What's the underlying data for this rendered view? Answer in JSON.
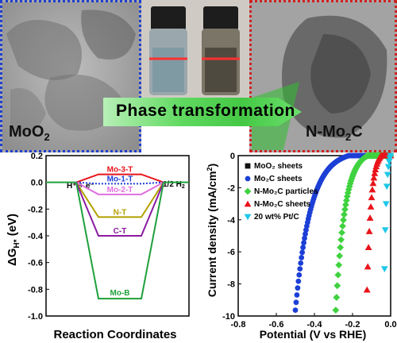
{
  "top": {
    "left_label": "MoO",
    "left_label_sub": "2",
    "right_label": "N-Mo",
    "right_label_sub": "2",
    "right_label_end": "C",
    "banner": "Phase transformation"
  },
  "chart_data": [
    {
      "type": "line",
      "ylabel": "ΔG",
      "ylabel_sub": "H*",
      "ylabel_unit": " (eV)",
      "xlabel": "Reaction Coordinates",
      "ylim": [
        -1.0,
        0.2
      ],
      "yticks": [
        "0.2",
        "0.0",
        "-0.2",
        "-0.4",
        "-0.6",
        "-0.8",
        "-1.0"
      ],
      "ytick_values": [
        0.2,
        0.0,
        -0.2,
        -0.4,
        -0.6,
        -0.8,
        -1.0
      ],
      "start_label": "H⁺ + e⁻",
      "end_label": "1/2 H",
      "end_label_sub": "2",
      "series": [
        {
          "name": "Mo-3-T",
          "value": 0.06,
          "color": "#e8141a"
        },
        {
          "name": "Mo-1-T",
          "value": -0.01,
          "color": "#1c3fd6"
        },
        {
          "name": "Mo-2-T",
          "value": -0.09,
          "color": "#e070e0"
        },
        {
          "name": "N-T",
          "value": -0.26,
          "color": "#b2a000"
        },
        {
          "name": "C-T",
          "value": -0.4,
          "color": "#8a1aa0"
        },
        {
          "name": "Mo-B",
          "value": -0.87,
          "color": "#1fa03c"
        }
      ]
    },
    {
      "type": "scatter",
      "ylabel": "Current density (mA/cm",
      "ylabel_sup": "2",
      "ylabel_end": ")",
      "xlabel": "Potential (V vs RHE)",
      "xlim": [
        -0.8,
        0.0
      ],
      "ylim": [
        -10,
        0
      ],
      "xticks": [
        "-0.8",
        "-0.6",
        "-0.4",
        "-0.2",
        "0.0"
      ],
      "xtick_values": [
        -0.8,
        -0.6,
        -0.4,
        -0.2,
        0.0
      ],
      "yticks": [
        "0",
        "-2",
        "-4",
        "-6",
        "-8",
        "-10"
      ],
      "ytick_values": [
        0,
        -2,
        -4,
        -6,
        -8,
        -10
      ],
      "legend_position": "top-left",
      "series": [
        {
          "name": "MoO₂ sheets",
          "color": "#111111",
          "marker": "square",
          "onset": -0.3,
          "tafel": 0.1,
          "scale": 0.8
        },
        {
          "name": "Mo₂C sheets",
          "color": "#1c3fd6",
          "marker": "circle",
          "onset": -0.22,
          "tafel": 0.08,
          "scale": 0.3
        },
        {
          "name": "N-Mo₂C particles",
          "color": "#3fd23f",
          "marker": "diamond",
          "onset": -0.12,
          "tafel": 0.048,
          "scale": 0.3
        },
        {
          "name": "N-Mo₂C sheets",
          "color": "#e8141a",
          "marker": "triangle",
          "onset": -0.05,
          "tafel": 0.022,
          "scale": 0.3
        },
        {
          "name": "20 wt% Pt/C",
          "color": "#1fc8e8",
          "marker": "triangle-down",
          "onset": 0.0,
          "tafel": 0.01,
          "scale": 0.3
        }
      ]
    }
  ]
}
